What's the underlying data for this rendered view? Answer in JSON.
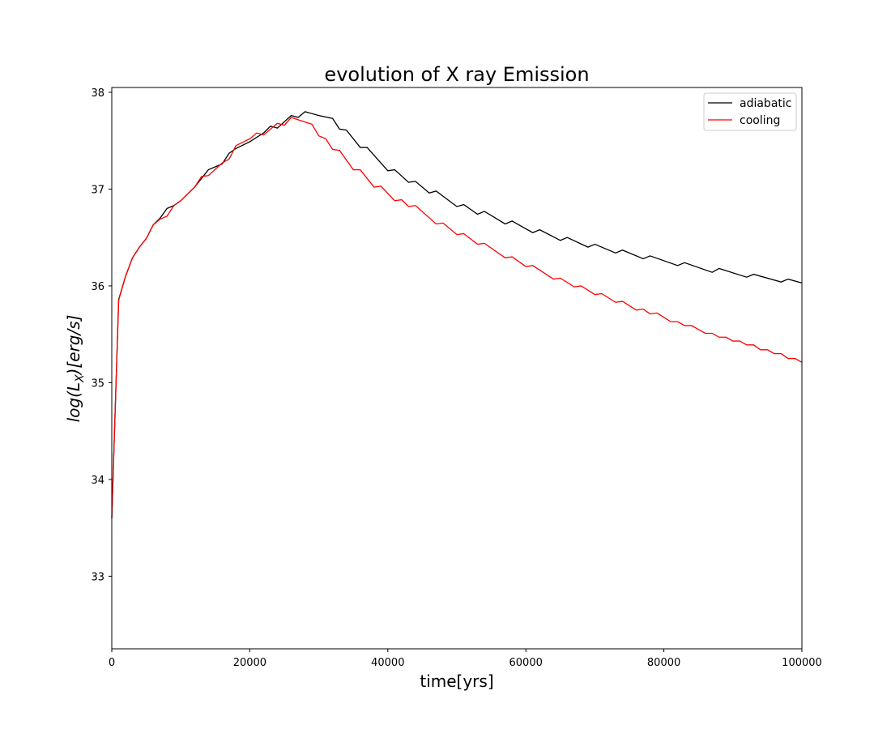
{
  "chart_data": {
    "type": "line",
    "title": "evolution of X ray Emission",
    "xlabel": "time[yrs]",
    "ylabel": "log(L_X)[erg/s]",
    "xlim": [
      0,
      100000
    ],
    "ylim": [
      32.25,
      38.05
    ],
    "xticks": [
      0,
      20000,
      40000,
      60000,
      80000,
      100000
    ],
    "yticks": [
      33,
      34,
      35,
      36,
      37,
      38
    ],
    "grid": false,
    "legend": "top-right",
    "series": [
      {
        "name": "adiabatic",
        "color": "#000000",
        "points": [
          [
            0,
            33.6
          ],
          [
            1000,
            35.86
          ],
          [
            2000,
            36.1
          ],
          [
            3000,
            36.29
          ],
          [
            4000,
            36.4
          ],
          [
            5000,
            36.49
          ],
          [
            6000,
            36.63
          ],
          [
            7000,
            36.7
          ],
          [
            8000,
            36.8
          ],
          [
            9000,
            36.83
          ],
          [
            10000,
            36.88
          ],
          [
            12000,
            37.02
          ],
          [
            14000,
            37.2
          ],
          [
            16000,
            37.26
          ],
          [
            17000,
            37.37
          ],
          [
            18000,
            37.42
          ],
          [
            20000,
            37.49
          ],
          [
            22000,
            37.58
          ],
          [
            23000,
            37.65
          ],
          [
            24000,
            37.63
          ],
          [
            26000,
            37.76
          ],
          [
            27000,
            37.74
          ],
          [
            28000,
            37.8
          ],
          [
            30000,
            37.76
          ],
          [
            32000,
            37.73
          ],
          [
            33000,
            37.62
          ],
          [
            34000,
            37.61
          ],
          [
            36000,
            37.43
          ],
          [
            37000,
            37.43
          ],
          [
            38000,
            37.35
          ],
          [
            40000,
            37.19
          ],
          [
            41000,
            37.2
          ],
          [
            43000,
            37.07
          ],
          [
            44000,
            37.08
          ],
          [
            46000,
            36.96
          ],
          [
            47000,
            36.98
          ],
          [
            50000,
            36.82
          ],
          [
            51000,
            36.84
          ],
          [
            53000,
            36.74
          ],
          [
            54000,
            36.77
          ],
          [
            57000,
            36.64
          ],
          [
            58000,
            36.67
          ],
          [
            61000,
            36.55
          ],
          [
            62000,
            36.58
          ],
          [
            65000,
            36.47
          ],
          [
            66000,
            36.5
          ],
          [
            69000,
            36.4
          ],
          [
            70000,
            36.43
          ],
          [
            73000,
            36.34
          ],
          [
            74000,
            36.37
          ],
          [
            77000,
            36.28
          ],
          [
            78000,
            36.31
          ],
          [
            82000,
            36.21
          ],
          [
            83000,
            36.24
          ],
          [
            87000,
            36.14
          ],
          [
            88000,
            36.18
          ],
          [
            92000,
            36.09
          ],
          [
            93000,
            36.12
          ],
          [
            97000,
            36.04
          ],
          [
            98000,
            36.07
          ],
          [
            100000,
            36.03
          ]
        ]
      },
      {
        "name": "cooling",
        "color": "#ff0000",
        "points": [
          [
            0,
            33.6
          ],
          [
            1000,
            35.85
          ],
          [
            2000,
            36.1
          ],
          [
            3000,
            36.29
          ],
          [
            4000,
            36.4
          ],
          [
            5000,
            36.49
          ],
          [
            6000,
            36.63
          ],
          [
            7000,
            36.69
          ],
          [
            8000,
            36.72
          ],
          [
            9000,
            36.83
          ],
          [
            10000,
            36.88
          ],
          [
            12000,
            37.02
          ],
          [
            13000,
            37.13
          ],
          [
            14000,
            37.14
          ],
          [
            16000,
            37.27
          ],
          [
            17000,
            37.31
          ],
          [
            18000,
            37.45
          ],
          [
            20000,
            37.52
          ],
          [
            21000,
            37.58
          ],
          [
            22000,
            37.56
          ],
          [
            24000,
            37.68
          ],
          [
            25000,
            37.66
          ],
          [
            26000,
            37.74
          ],
          [
            29000,
            37.67
          ],
          [
            30000,
            37.55
          ],
          [
            31000,
            37.52
          ],
          [
            32000,
            37.41
          ],
          [
            33000,
            37.4
          ],
          [
            35000,
            37.2
          ],
          [
            36000,
            37.2
          ],
          [
            38000,
            37.02
          ],
          [
            39000,
            37.03
          ],
          [
            41000,
            36.88
          ],
          [
            42000,
            36.89
          ],
          [
            43000,
            36.82
          ],
          [
            44000,
            36.83
          ],
          [
            47000,
            36.64
          ],
          [
            48000,
            36.65
          ],
          [
            50000,
            36.53
          ],
          [
            51000,
            36.54
          ],
          [
            53000,
            36.43
          ],
          [
            54000,
            36.44
          ],
          [
            57000,
            36.29
          ],
          [
            58000,
            36.3
          ],
          [
            60000,
            36.2
          ],
          [
            61000,
            36.21
          ],
          [
            64000,
            36.07
          ],
          [
            65000,
            36.08
          ],
          [
            67000,
            35.99
          ],
          [
            68000,
            36.0
          ],
          [
            70000,
            35.91
          ],
          [
            71000,
            35.92
          ],
          [
            73000,
            35.83
          ],
          [
            74000,
            35.84
          ],
          [
            76000,
            35.75
          ],
          [
            77000,
            35.76
          ],
          [
            78000,
            35.71
          ],
          [
            79000,
            35.72
          ],
          [
            81000,
            35.63
          ],
          [
            82000,
            35.63
          ],
          [
            83000,
            35.59
          ],
          [
            84000,
            35.59
          ],
          [
            86000,
            35.51
          ],
          [
            87000,
            35.51
          ],
          [
            88000,
            35.47
          ],
          [
            89000,
            35.47
          ],
          [
            90000,
            35.43
          ],
          [
            91000,
            35.43
          ],
          [
            92000,
            35.39
          ],
          [
            93000,
            35.39
          ],
          [
            94000,
            35.34
          ],
          [
            95000,
            35.34
          ],
          [
            96000,
            35.3
          ],
          [
            97000,
            35.3
          ],
          [
            98000,
            35.25
          ],
          [
            99000,
            35.25
          ],
          [
            100000,
            35.21
          ]
        ]
      }
    ]
  }
}
